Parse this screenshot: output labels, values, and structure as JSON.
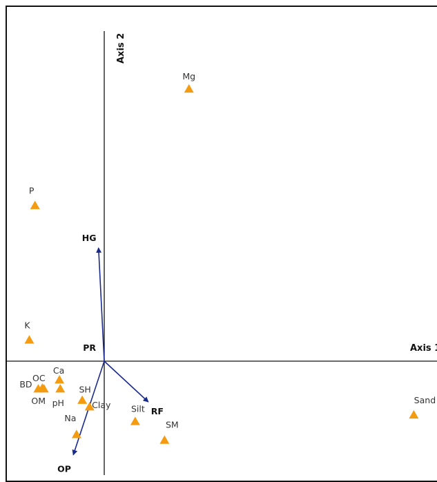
{
  "chart_data": {
    "type": "scatter",
    "title": "",
    "axes": {
      "x_label": "Axis 1",
      "y_label": "Axis 2"
    },
    "colors": {
      "point": "#F39C12",
      "arrow": "#1A2A8C",
      "axis": "#111111"
    },
    "xlim": [
      -1.0,
      4.0
    ],
    "ylim": [
      -1.5,
      4.0
    ],
    "points": [
      {
        "label": "Mg",
        "x": 1.04,
        "y": 3.34
      },
      {
        "label": "P",
        "x": -0.85,
        "y": 1.91
      },
      {
        "label": "K",
        "x": -0.92,
        "y": 0.26
      },
      {
        "label": "Ca",
        "x": -0.55,
        "y": -0.23
      },
      {
        "label": "OC",
        "x": -0.76,
        "y": -0.33
      },
      {
        "label": "BD",
        "x": -0.81,
        "y": -0.34
      },
      {
        "label": "OM",
        "x": -0.74,
        "y": -0.34
      },
      {
        "label": "pH",
        "x": -0.54,
        "y": -0.34
      },
      {
        "label": "SH",
        "x": -0.27,
        "y": -0.48
      },
      {
        "label": "Clay",
        "x": -0.18,
        "y": -0.56
      },
      {
        "label": "Na",
        "x": -0.34,
        "y": -0.9
      },
      {
        "label": "Silt",
        "x": 0.38,
        "y": -0.74
      },
      {
        "label": "SM",
        "x": 0.74,
        "y": -0.97
      },
      {
        "label": "Sand",
        "x": 3.8,
        "y": -0.66
      }
    ],
    "vectors": [
      {
        "label": "HG",
        "x": -0.07,
        "y": 1.39
      },
      {
        "label": "PR",
        "x": -0.04,
        "y": 0.01
      },
      {
        "label": "RF",
        "x": 0.54,
        "y": -0.5
      },
      {
        "label": "OP",
        "x": -0.38,
        "y": -1.15
      }
    ]
  }
}
